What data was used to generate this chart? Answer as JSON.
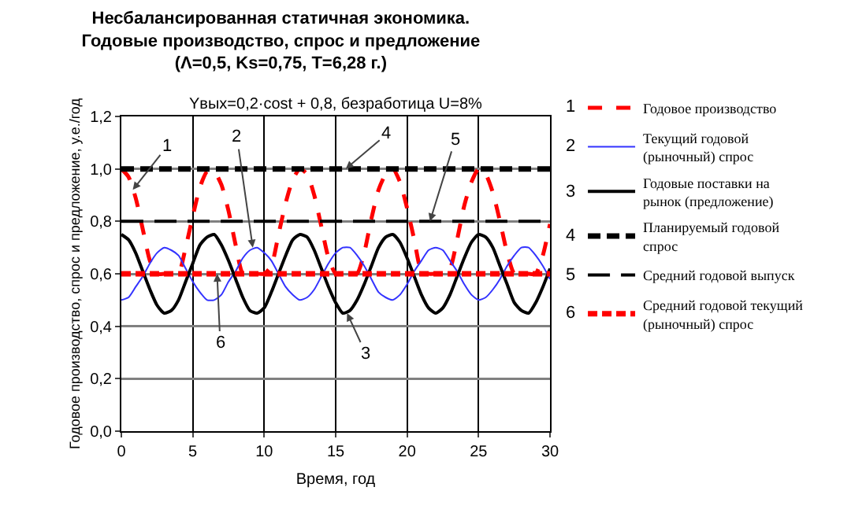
{
  "chart_data": {
    "type": "line",
    "title": "Несбалансированная статичная экономика.\nГодовые производство, спрос и предложение\n(Λ=0,5, Ks=0,75, T=6,28 г.)",
    "subtitle": "Yвых=0,2·cost + 0,8, безработица U=8%",
    "xlabel": "Время, год",
    "ylabel": "Годовое производство, спрос и предложение, у.е./год",
    "x": [
      0,
      0.5,
      1,
      1.5,
      2,
      2.5,
      3,
      3.5,
      4,
      4.5,
      5,
      5.5,
      6,
      6.5,
      7,
      7.5,
      8,
      8.5,
      9,
      9.5,
      10,
      10.5,
      11,
      11.5,
      12,
      12.5,
      13,
      13.5,
      14,
      14.5,
      15,
      15.5,
      16,
      16.5,
      17,
      17.5,
      18,
      18.5,
      19,
      19.5,
      20,
      20.5,
      21,
      21.5,
      22,
      22.5,
      23,
      23.5,
      24,
      24.5,
      25,
      25.5,
      26,
      26.5,
      27,
      27.5,
      28,
      28.5,
      29,
      29.5,
      30
    ],
    "series": [
      {
        "name": "Годовое производство",
        "color": "#ff0000",
        "line_style": "dashed",
        "values": [
          1.0,
          0.97,
          0.89,
          0.77,
          0.65,
          0.6,
          0.6,
          0.6,
          0.6,
          0.7,
          0.82,
          0.93,
          0.99,
          0.99,
          0.94,
          0.84,
          0.71,
          0.6,
          0.6,
          0.6,
          0.6,
          0.63,
          0.75,
          0.87,
          0.96,
          1.0,
          0.98,
          0.9,
          0.78,
          0.66,
          0.6,
          0.6,
          0.6,
          0.6,
          0.68,
          0.81,
          0.92,
          0.98,
          1.0,
          0.95,
          0.85,
          0.73,
          0.61,
          0.6,
          0.6,
          0.6,
          0.62,
          0.73,
          0.86,
          0.95,
          1.0,
          0.98,
          0.91,
          0.8,
          0.68,
          0.6,
          0.6,
          0.6,
          0.6,
          0.67,
          0.79
        ]
      },
      {
        "name": "Текущий годовой (рыночный) спрос",
        "color": "#3333ff",
        "line_style": "solid",
        "values": [
          0.5,
          0.51,
          0.55,
          0.59,
          0.64,
          0.68,
          0.7,
          0.69,
          0.67,
          0.62,
          0.57,
          0.53,
          0.5,
          0.5,
          0.52,
          0.57,
          0.61,
          0.66,
          0.69,
          0.7,
          0.68,
          0.65,
          0.6,
          0.55,
          0.52,
          0.5,
          0.51,
          0.54,
          0.59,
          0.64,
          0.68,
          0.7,
          0.7,
          0.67,
          0.63,
          0.58,
          0.53,
          0.51,
          0.5,
          0.52,
          0.56,
          0.61,
          0.65,
          0.69,
          0.7,
          0.69,
          0.65,
          0.61,
          0.56,
          0.52,
          0.5,
          0.51,
          0.54,
          0.58,
          0.63,
          0.67,
          0.7,
          0.7,
          0.67,
          0.63,
          0.58
        ]
      },
      {
        "name": "Годовые поставки на рынок (предложение)",
        "color": "#000000",
        "line_style": "solid",
        "values": [
          0.75,
          0.73,
          0.68,
          0.61,
          0.54,
          0.48,
          0.45,
          0.46,
          0.5,
          0.57,
          0.64,
          0.71,
          0.74,
          0.75,
          0.71,
          0.65,
          0.58,
          0.51,
          0.46,
          0.45,
          0.47,
          0.53,
          0.6,
          0.67,
          0.73,
          0.75,
          0.74,
          0.69,
          0.62,
          0.55,
          0.49,
          0.45,
          0.46,
          0.5,
          0.56,
          0.63,
          0.7,
          0.74,
          0.75,
          0.72,
          0.66,
          0.59,
          0.52,
          0.47,
          0.45,
          0.47,
          0.52,
          0.59,
          0.66,
          0.72,
          0.75,
          0.74,
          0.7,
          0.63,
          0.56,
          0.49,
          0.46,
          0.45,
          0.49,
          0.55,
          0.62
        ]
      },
      {
        "name": "Планируемый годовой спрос",
        "color": "#000000",
        "line_style": "dashed",
        "values": [
          1,
          1,
          1,
          1,
          1,
          1,
          1,
          1,
          1,
          1,
          1,
          1,
          1,
          1,
          1,
          1,
          1,
          1,
          1,
          1,
          1,
          1,
          1,
          1,
          1,
          1,
          1,
          1,
          1,
          1,
          1,
          1,
          1,
          1,
          1,
          1,
          1,
          1,
          1,
          1,
          1,
          1,
          1,
          1,
          1,
          1,
          1,
          1,
          1,
          1,
          1,
          1,
          1,
          1,
          1,
          1,
          1,
          1,
          1,
          1,
          1
        ]
      },
      {
        "name": "Средний годовой выпуск",
        "color": "#000000",
        "line_style": "dashed",
        "values": [
          0.8,
          0.8,
          0.8,
          0.8,
          0.8,
          0.8,
          0.8,
          0.8,
          0.8,
          0.8,
          0.8,
          0.8,
          0.8,
          0.8,
          0.8,
          0.8,
          0.8,
          0.8,
          0.8,
          0.8,
          0.8,
          0.8,
          0.8,
          0.8,
          0.8,
          0.8,
          0.8,
          0.8,
          0.8,
          0.8,
          0.8,
          0.8,
          0.8,
          0.8,
          0.8,
          0.8,
          0.8,
          0.8,
          0.8,
          0.8,
          0.8,
          0.8,
          0.8,
          0.8,
          0.8,
          0.8,
          0.8,
          0.8,
          0.8,
          0.8,
          0.8,
          0.8,
          0.8,
          0.8,
          0.8,
          0.8,
          0.8,
          0.8,
          0.8,
          0.8,
          0.8
        ]
      },
      {
        "name": "Средний годовой текущий (рыночный) спрос",
        "color": "#ff0000",
        "line_style": "dashed",
        "values": [
          0.6,
          0.6,
          0.6,
          0.6,
          0.6,
          0.6,
          0.6,
          0.6,
          0.6,
          0.6,
          0.6,
          0.6,
          0.6,
          0.6,
          0.6,
          0.6,
          0.6,
          0.6,
          0.6,
          0.6,
          0.6,
          0.6,
          0.6,
          0.6,
          0.6,
          0.6,
          0.6,
          0.6,
          0.6,
          0.6,
          0.6,
          0.6,
          0.6,
          0.6,
          0.6,
          0.6,
          0.6,
          0.6,
          0.6,
          0.6,
          0.6,
          0.6,
          0.6,
          0.6,
          0.6,
          0.6,
          0.6,
          0.6,
          0.6,
          0.6,
          0.6,
          0.6,
          0.6,
          0.6,
          0.6,
          0.6,
          0.6,
          0.6,
          0.6,
          0.6,
          0.6
        ]
      }
    ],
    "xlim": [
      0,
      30
    ],
    "xticks": [
      0,
      5,
      10,
      15,
      20,
      25,
      30
    ],
    "ylim": [
      0,
      1.2
    ],
    "yticks": [
      {
        "value": 0,
        "label": "0,0"
      },
      {
        "value": 0.2,
        "label": "0,2"
      },
      {
        "value": 0.4,
        "label": "0,4"
      },
      {
        "value": 0.6,
        "label": "0,6"
      },
      {
        "value": 0.8,
        "label": "0,8"
      },
      {
        "value": 1.0,
        "label": "1,0"
      },
      {
        "value": 1.2,
        "label": "1,2"
      }
    ],
    "grid": true,
    "legend": "right",
    "marker": "none",
    "annotations": [
      {
        "text": "1",
        "x": 0.8,
        "y": 0.92
      },
      {
        "text": "2",
        "x": 9.2,
        "y": 0.7
      },
      {
        "text": "3",
        "x": 15.8,
        "y": 0.45
      },
      {
        "text": "4",
        "x": 15.7,
        "y": 1.0
      },
      {
        "text": "5",
        "x": 21.6,
        "y": 0.8
      },
      {
        "text": "6",
        "x": 6.7,
        "y": 0.6
      },
      "1",
      "2",
      "3",
      "4",
      "5",
      "6"
    ]
  }
}
